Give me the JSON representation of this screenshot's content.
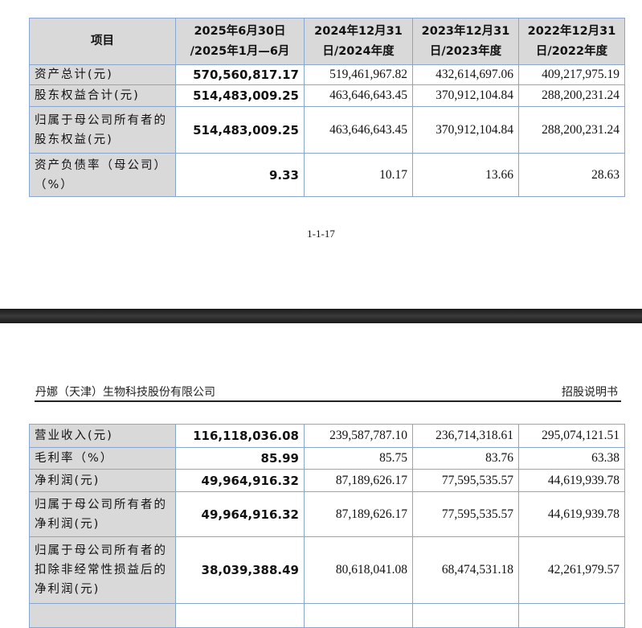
{
  "page1": {
    "columns": [
      "项目",
      "2025年6月30日 /2025年1月—6月",
      "2024年12月31 日/2024年度",
      "2023年12月31 日/2023年度",
      "2022年12月31 日/2022年度"
    ],
    "rows": [
      {
        "label": "资产总计(元)",
        "values": [
          "570,560,817.17",
          "519,461,967.82",
          "432,614,697.06",
          "409,217,975.19"
        ]
      },
      {
        "label": "股东权益合计(元)",
        "values": [
          "514,483,009.25",
          "463,646,643.45",
          "370,912,104.84",
          "288,200,231.24"
        ]
      },
      {
        "label": "归属于母公司所有者的股东权益(元)",
        "values": [
          "514,483,009.25",
          "463,646,643.45",
          "370,912,104.84",
          "288,200,231.24"
        ]
      },
      {
        "label": "资产负债率（母公司）（%）",
        "values": [
          "9.33",
          "10.17",
          "13.66",
          "28.63"
        ]
      }
    ],
    "page_number": "1-1-17"
  },
  "page2": {
    "header_left": "丹娜（天津）生物科技股份有限公司",
    "header_right": "招股说明书",
    "rows": [
      {
        "label": "营业收入(元)",
        "values": [
          "116,118,036.08",
          "239,587,787.10",
          "236,714,318.61",
          "295,074,121.51"
        ]
      },
      {
        "label": "毛利率（%）",
        "values": [
          "85.99",
          "85.75",
          "83.76",
          "63.38"
        ]
      },
      {
        "label": "净利润(元)",
        "values": [
          "49,964,916.32",
          "87,189,626.17",
          "77,595,535.57",
          "44,619,939.78"
        ]
      },
      {
        "label": "归属于母公司所有者的净利润(元)",
        "values": [
          "49,964,916.32",
          "87,189,626.17",
          "77,595,535.57",
          "44,619,939.78"
        ]
      },
      {
        "label": "归属于母公司所有者的扣除非经常性损益后的净利润(元)",
        "values": [
          "38,039,388.49",
          "80,618,041.08",
          "68,474,531.18",
          "42,261,979.57"
        ]
      }
    ]
  },
  "colors": {
    "border": "#8aa6cf",
    "label_bg": "#d9d9d9",
    "page_gap": "#222222"
  }
}
